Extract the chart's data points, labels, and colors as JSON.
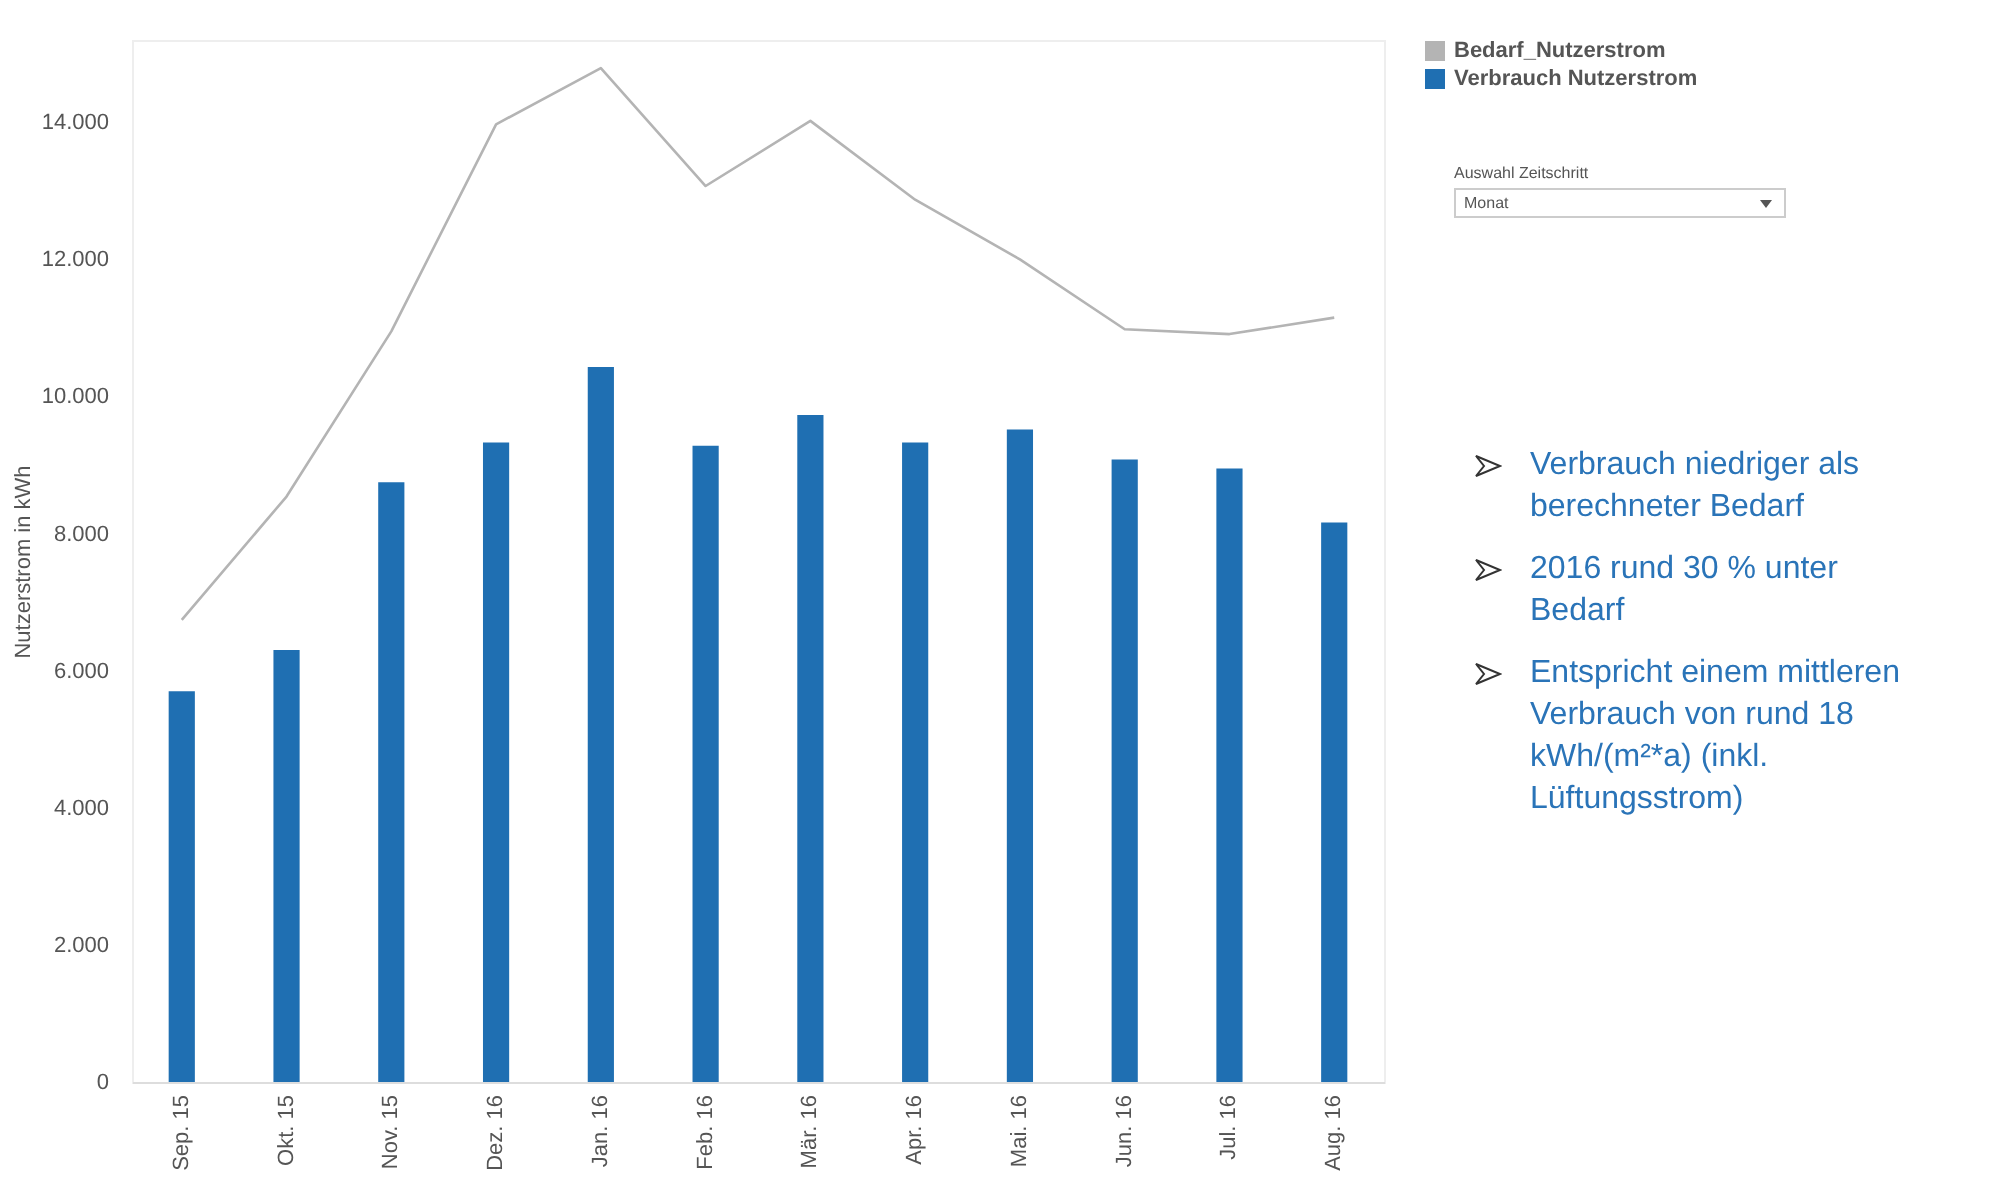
{
  "chart_data": {
    "type": "bar",
    "ylabel": "Nutzerstrom in kWh",
    "categories": [
      "Sep. 15",
      "Okt. 15",
      "Nov. 15",
      "Dez. 16",
      "Jan. 16",
      "Feb. 16",
      "Mär. 16",
      "Apr. 16",
      "Mai. 16",
      "Jun. 16",
      "Jul. 16",
      "Aug. 16"
    ],
    "series": [
      {
        "name": "Bedarf_Nutzerstrom",
        "type": "line",
        "color": "#b4b4b4",
        "values": [
          6740,
          8540,
          10950,
          13970,
          14790,
          13070,
          14020,
          12870,
          12000,
          10980,
          10910,
          11150
        ]
      },
      {
        "name": "Verbrauch Nutzerstrom",
        "color": "#1f6fb2",
        "values": [
          5700,
          6300,
          8750,
          9330,
          10430,
          9280,
          9730,
          9330,
          9520,
          9080,
          8950,
          8160
        ]
      }
    ],
    "ylim": [
      0,
      15200
    ],
    "yticks": [
      {
        "value": 0,
        "label": "0"
      },
      {
        "value": 2000,
        "label": "2.000"
      },
      {
        "value": 4000,
        "label": "4.000"
      },
      {
        "value": 6000,
        "label": "6.000"
      },
      {
        "value": 8000,
        "label": "8.000"
      },
      {
        "value": 10000,
        "label": "10.000"
      },
      {
        "value": 12000,
        "label": "12.000"
      },
      {
        "value": 14000,
        "label": "14.000"
      }
    ],
    "grid": false,
    "legend": "top right",
    "annotations": [
      "Auswahl Zeitschritt",
      "Monat",
      "Verbrauch niedriger als berechneter Bedarf",
      "2016 rund 30 % unter Bedarf",
      "Entspricht einem mittleren Verbrauch von rund 18 kWh/(m²*a) (inkl. Lüftungsstrom)"
    ]
  }
}
